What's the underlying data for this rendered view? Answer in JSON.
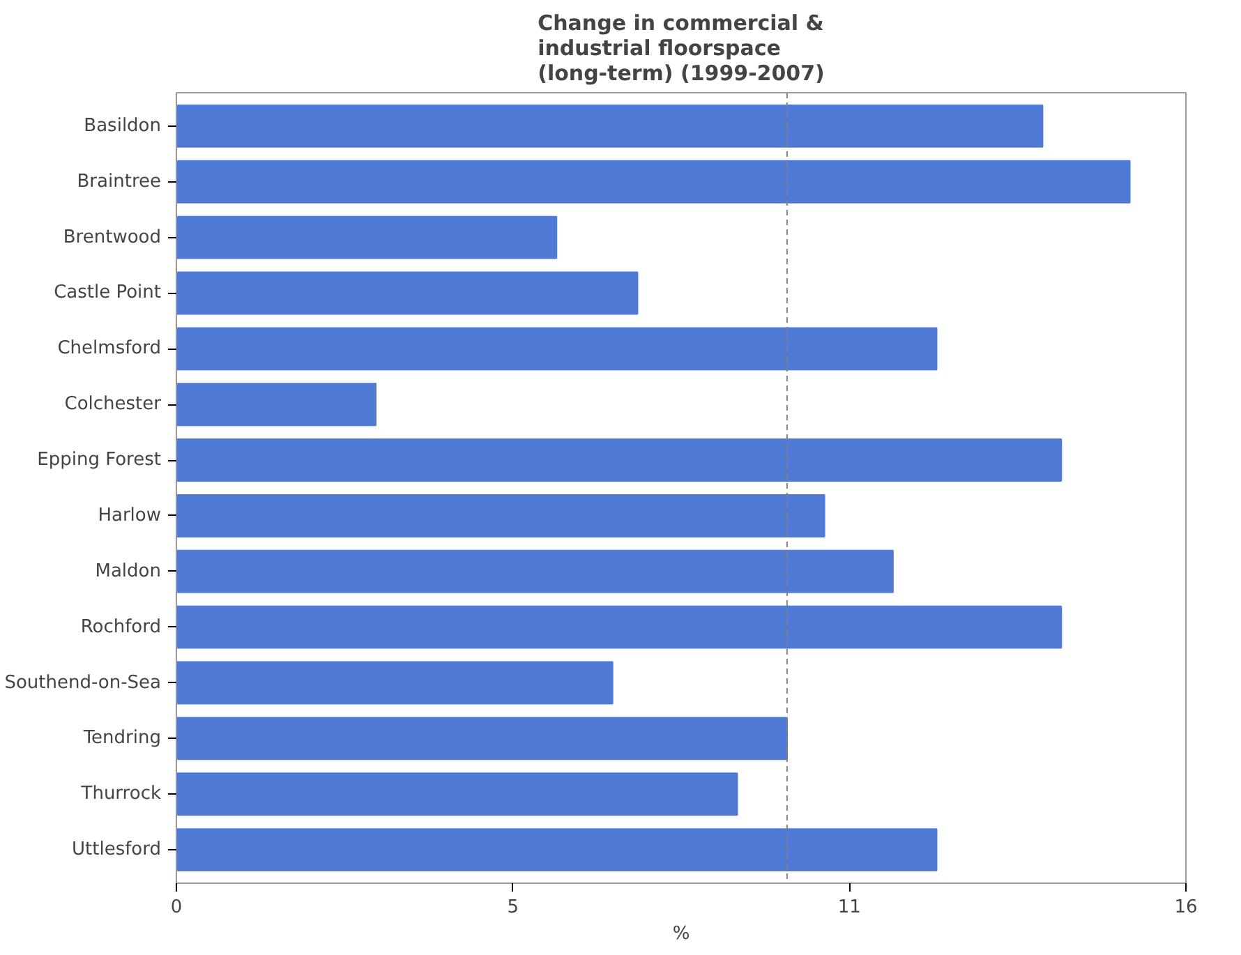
{
  "chart_data": {
    "type": "bar",
    "orientation": "horizontal",
    "title": "Change in commercial &\nindustrial floorspace\n(long-term) (1999-2007)",
    "xlabel": "%",
    "categories": [
      "Basildon",
      "Braintree",
      "Brentwood",
      "Castle Point",
      "Chelmsford",
      "Colchester",
      "Epping Forest",
      "Harlow",
      "Maldon",
      "Rochford",
      "Southend-on-Sea",
      "Tendring",
      "Thurrock",
      "Uttlesford"
    ],
    "values": [
      13.9,
      15.3,
      6.1,
      7.4,
      12.2,
      3.2,
      14.2,
      10.4,
      11.5,
      14.2,
      7.0,
      9.8,
      9.0,
      12.2
    ],
    "color": "#4f7bd6",
    "xlim": [
      0,
      16.2
    ],
    "xticks": [
      0,
      {
        "value": 5.4,
        "label": "5"
      },
      {
        "value": 10.8,
        "label": "11"
      },
      {
        "value": 16.2,
        "label": "16"
      }
    ],
    "ref_lines": [
      {
        "axis": "x",
        "value": 9.8,
        "label": null,
        "color": "#808080",
        "line_style": "dashed"
      }
    ],
    "grid": false
  }
}
